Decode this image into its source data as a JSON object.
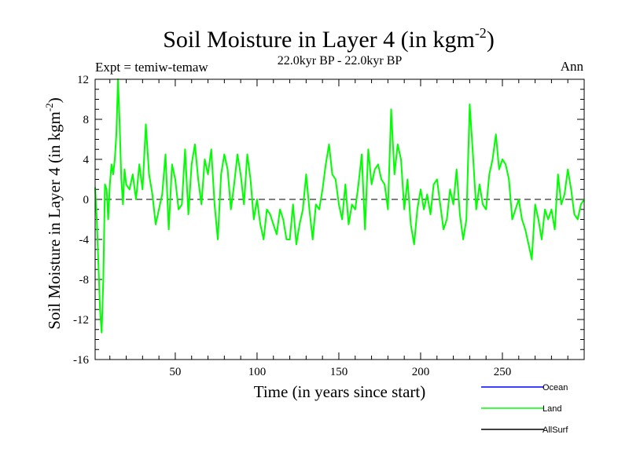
{
  "chart_data": {
    "type": "line",
    "title": "Soil Moisture in Layer 4 (in kgm",
    "title_superscript": "-2",
    "title_close": ")",
    "subtitle": "22.0kyr BP - 22.0kyr BP",
    "left_label": "Expt = temiw-temaw",
    "right_label": "Ann",
    "xlabel": "Time (in years since start)",
    "ylabel": "Soil Moisture in Layer 4 (in kgm",
    "ylabel_superscript": "-2",
    "ylabel_close": ")",
    "xlim": [
      1,
      300
    ],
    "ylim": [
      -16,
      12
    ],
    "x_ticks": [
      50,
      100,
      150,
      200,
      250
    ],
    "x_tick_labels": [
      "50",
      "100",
      "150",
      "200",
      "250"
    ],
    "y_ticks": [
      -16,
      -12,
      -8,
      -4,
      0,
      4,
      8,
      12
    ],
    "y_tick_labels": [
      "-16",
      "-12",
      "-8",
      "-4",
      "0",
      "4",
      "8",
      "12"
    ],
    "zero_line": "dashed",
    "legend_position": "bottom-right",
    "series": [
      {
        "name": "Ocean",
        "color": "#0000ff",
        "x": [],
        "y": []
      },
      {
        "name": "Land",
        "color": "#00ff00",
        "x": [
          1,
          2,
          3,
          4,
          5,
          6,
          7,
          8,
          9,
          10,
          11,
          12,
          13,
          14,
          15,
          16,
          17,
          18,
          19,
          20,
          22,
          24,
          26,
          28,
          30,
          32,
          34,
          36,
          38,
          40,
          42,
          44,
          46,
          48,
          50,
          52,
          54,
          56,
          58,
          60,
          62,
          64,
          66,
          68,
          70,
          72,
          74,
          76,
          78,
          80,
          82,
          84,
          86,
          88,
          90,
          92,
          94,
          96,
          98,
          100,
          102,
          104,
          106,
          108,
          110,
          112,
          114,
          116,
          118,
          120,
          122,
          124,
          126,
          128,
          130,
          132,
          134,
          136,
          138,
          140,
          142,
          144,
          146,
          148,
          150,
          152,
          154,
          156,
          158,
          160,
          162,
          164,
          166,
          168,
          170,
          172,
          174,
          176,
          178,
          180,
          182,
          184,
          186,
          188,
          190,
          192,
          194,
          196,
          198,
          200,
          202,
          204,
          206,
          208,
          210,
          212,
          214,
          216,
          218,
          220,
          222,
          224,
          226,
          228,
          230,
          232,
          234,
          236,
          238,
          240,
          242,
          244,
          246,
          248,
          250,
          252,
          254,
          256,
          258,
          260,
          262,
          264,
          266,
          268,
          270,
          272,
          274,
          276,
          278,
          280,
          282,
          284,
          286,
          288,
          290,
          292,
          294,
          296,
          298,
          300
        ],
        "y": [
          1.2,
          -2,
          -6.5,
          -11,
          -13.3,
          -8,
          1.5,
          1,
          -2,
          1.5,
          3.5,
          2.5,
          4,
          6.5,
          12,
          7.5,
          2,
          -0.5,
          3,
          1.5,
          1,
          2.5,
          0,
          3.5,
          1,
          7.5,
          2.5,
          0.5,
          -2.5,
          -1,
          0.5,
          4.5,
          -3,
          3.5,
          2,
          -1,
          -0.5,
          5,
          -1.5,
          3.5,
          5.5,
          2,
          -0.5,
          4,
          2.5,
          5,
          -0.5,
          -4,
          2.5,
          4.5,
          3,
          -1,
          1.5,
          4.5,
          2.5,
          -0.5,
          4.5,
          2,
          -2,
          0,
          -2.5,
          -4,
          -1,
          -1.5,
          -2.5,
          -3.5,
          -1,
          -2,
          -4,
          -4,
          -0.5,
          -4.5,
          -2.5,
          -1,
          2.5,
          -1,
          -4,
          -0.5,
          -1,
          1,
          3.5,
          5.5,
          2.5,
          2,
          -0.5,
          -2,
          1.5,
          -2.5,
          -0.5,
          -1,
          1.5,
          4.5,
          -3,
          5,
          1.5,
          3,
          3.5,
          2,
          1.5,
          -1,
          9,
          2.5,
          5.5,
          4,
          -1,
          2,
          -2.5,
          -4.5,
          -1,
          1,
          -1,
          0.5,
          -1.5,
          1.5,
          2,
          -0.5,
          -3,
          -2,
          1,
          -0.5,
          3,
          -1.5,
          -4,
          -2,
          9.5,
          4.5,
          -1,
          1.5,
          -0.5,
          -1,
          2.5,
          4,
          6.5,
          3,
          4,
          3.5,
          2,
          -2,
          -1,
          0,
          -2,
          -3,
          -4.5,
          -6,
          -0.5,
          -2,
          -4,
          -1,
          -2,
          -1,
          -3,
          2.5,
          -0.5,
          0.5,
          3,
          1,
          -1.5,
          -2,
          -0.5,
          0
        ]
      },
      {
        "name": "AllSurf",
        "color": "#000000",
        "x": [],
        "y": []
      }
    ]
  }
}
